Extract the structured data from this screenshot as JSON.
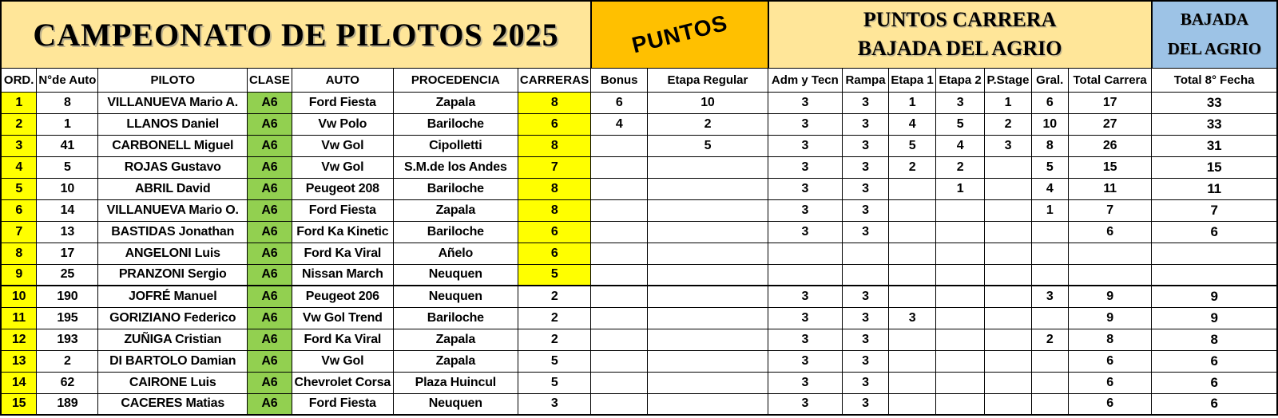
{
  "title": "CAMPEONATO DE PILOTOS 2025",
  "header_boxes": {
    "puntos": "PUNTOS",
    "puntos_carrera_line1": "PUNTOS CARRERA",
    "puntos_carrera_line2": "BAJADA DEL AGRIO",
    "bajada_line1": "BAJADA",
    "bajada_line2": "DEL AGRIO"
  },
  "colors": {
    "cream_band": "#FFE699",
    "puntos_orange": "#FFC000",
    "bajada_blue": "#9DC3E6",
    "highlight_yellow": "#FFFF00",
    "clase_green": "#92D050",
    "carreras_red": "#FF0000",
    "carreras_text_dark_red": "#7F1010"
  },
  "table": {
    "columns": [
      "ORD.",
      "N°de Auto",
      "PILOTO",
      "CLASE",
      "AUTO",
      "PROCEDENCIA",
      "CARRERAS",
      "Bonus",
      "Etapa Regular",
      "Adm y Tecn",
      "Rampa",
      "Etapa 1",
      "Etapa 2",
      "P.Stage",
      "Gral.",
      "Total Carrera",
      "Total 8° Fecha"
    ],
    "rows": [
      {
        "ord": "1",
        "auto_num": "8",
        "piloto": "VILLANUEVA Mario A.",
        "clase": "A6",
        "auto": "Ford Fiesta",
        "procedencia": "Zapala",
        "carreras": "8",
        "carreras_highlight": true,
        "bonus": "6",
        "etapa_regular": "10",
        "adm_y_tecn": "3",
        "rampa": "3",
        "etapa1": "1",
        "etapa2": "3",
        "p_stage": "1",
        "gral": "6",
        "total_carrera": "17",
        "total_fecha": "33"
      },
      {
        "ord": "2",
        "auto_num": "1",
        "piloto": "LLANOS Daniel",
        "clase": "A6",
        "auto": "Vw Polo",
        "procedencia": "Bariloche",
        "carreras": "6",
        "carreras_highlight": true,
        "bonus": "4",
        "etapa_regular": "2",
        "adm_y_tecn": "3",
        "rampa": "3",
        "etapa1": "4",
        "etapa2": "5",
        "p_stage": "2",
        "gral": "10",
        "total_carrera": "27",
        "total_fecha": "33"
      },
      {
        "ord": "3",
        "auto_num": "41",
        "piloto": "CARBONELL Miguel",
        "clase": "A6",
        "auto": "Vw Gol",
        "procedencia": "Cipolletti",
        "carreras": "8",
        "carreras_highlight": true,
        "bonus": "",
        "etapa_regular": "5",
        "adm_y_tecn": "3",
        "rampa": "3",
        "etapa1": "5",
        "etapa2": "4",
        "p_stage": "3",
        "gral": "8",
        "total_carrera": "26",
        "total_fecha": "31"
      },
      {
        "ord": "4",
        "auto_num": "5",
        "piloto": "ROJAS Gustavo",
        "clase": "A6",
        "auto": "Vw Gol",
        "procedencia": "S.M.de los Andes",
        "carreras": "7",
        "carreras_highlight": true,
        "bonus": "",
        "etapa_regular": "",
        "adm_y_tecn": "3",
        "rampa": "3",
        "etapa1": "2",
        "etapa2": "2",
        "p_stage": "",
        "gral": "5",
        "total_carrera": "15",
        "total_fecha": "15"
      },
      {
        "ord": "5",
        "auto_num": "10",
        "piloto": "ABRIL David",
        "clase": "A6",
        "auto": "Peugeot 208",
        "procedencia": "Bariloche",
        "carreras": "8",
        "carreras_highlight": true,
        "bonus": "",
        "etapa_regular": "",
        "adm_y_tecn": "3",
        "rampa": "3",
        "etapa1": "",
        "etapa2": "1",
        "p_stage": "",
        "gral": "4",
        "total_carrera": "11",
        "total_fecha": "11"
      },
      {
        "ord": "6",
        "auto_num": "14",
        "piloto": "VILLANUEVA Mario O.",
        "clase": "A6",
        "auto": "Ford Fiesta",
        "procedencia": "Zapala",
        "carreras": "8",
        "carreras_highlight": true,
        "bonus": "",
        "etapa_regular": "",
        "adm_y_tecn": "3",
        "rampa": "3",
        "etapa1": "",
        "etapa2": "",
        "p_stage": "",
        "gral": "1",
        "total_carrera": "7",
        "total_fecha": "7"
      },
      {
        "ord": "7",
        "auto_num": "13",
        "piloto": "BASTIDAS Jonathan",
        "clase": "A6",
        "auto": "Ford Ka Kinetic",
        "procedencia": "Bariloche",
        "carreras": "6",
        "carreras_highlight": true,
        "bonus": "",
        "etapa_regular": "",
        "adm_y_tecn": "3",
        "rampa": "3",
        "etapa1": "",
        "etapa2": "",
        "p_stage": "",
        "gral": "",
        "total_carrera": "6",
        "total_fecha": "6"
      },
      {
        "ord": "8",
        "auto_num": "17",
        "piloto": "ANGELONI Luis",
        "clase": "A6",
        "auto": "Ford Ka Viral",
        "procedencia": "Añelo",
        "carreras": "6",
        "carreras_highlight": true,
        "bonus": "",
        "etapa_regular": "",
        "adm_y_tecn": "",
        "rampa": "",
        "etapa1": "",
        "etapa2": "",
        "p_stage": "",
        "gral": "",
        "total_carrera": "",
        "total_fecha": ""
      },
      {
        "ord": "9",
        "auto_num": "25",
        "piloto": "PRANZONI Sergio",
        "clase": "A6",
        "auto": "Nissan March",
        "procedencia": "Neuquen",
        "carreras": "5",
        "carreras_highlight": true,
        "bonus": "",
        "etapa_regular": "",
        "adm_y_tecn": "",
        "rampa": "",
        "etapa1": "",
        "etapa2": "",
        "p_stage": "",
        "gral": "",
        "total_carrera": "",
        "total_fecha": ""
      },
      {
        "ord": "10",
        "auto_num": "190",
        "piloto": "JOFRÉ Manuel",
        "clase": "A6",
        "auto": "Peugeot 206",
        "procedencia": "Neuquen",
        "carreras": "2",
        "carreras_highlight": false,
        "bonus": "",
        "etapa_regular": "",
        "adm_y_tecn": "3",
        "rampa": "3",
        "etapa1": "",
        "etapa2": "",
        "p_stage": "",
        "gral": "3",
        "total_carrera": "9",
        "total_fecha": "9"
      },
      {
        "ord": "11",
        "auto_num": "195",
        "piloto": "GORIZIANO Federico",
        "clase": "A6",
        "auto": "Vw Gol Trend",
        "procedencia": "Bariloche",
        "carreras": "2",
        "carreras_highlight": false,
        "bonus": "",
        "etapa_regular": "",
        "adm_y_tecn": "3",
        "rampa": "3",
        "etapa1": "3",
        "etapa2": "",
        "p_stage": "",
        "gral": "",
        "total_carrera": "9",
        "total_fecha": "9"
      },
      {
        "ord": "12",
        "auto_num": "193",
        "piloto": "ZUÑIGA Cristian",
        "clase": "A6",
        "auto": "Ford Ka Viral",
        "procedencia": "Zapala",
        "carreras": "2",
        "carreras_highlight": false,
        "bonus": "",
        "etapa_regular": "",
        "adm_y_tecn": "3",
        "rampa": "3",
        "etapa1": "",
        "etapa2": "",
        "p_stage": "",
        "gral": "2",
        "total_carrera": "8",
        "total_fecha": "8"
      },
      {
        "ord": "13",
        "auto_num": "2",
        "piloto": "DI BARTOLO Damian",
        "clase": "A6",
        "auto": "Vw Gol",
        "procedencia": "Zapala",
        "carreras": "5",
        "carreras_highlight": false,
        "bonus": "",
        "etapa_regular": "",
        "adm_y_tecn": "3",
        "rampa": "3",
        "etapa1": "",
        "etapa2": "",
        "p_stage": "",
        "gral": "",
        "total_carrera": "6",
        "total_fecha": "6"
      },
      {
        "ord": "14",
        "auto_num": "62",
        "piloto": "CAIRONE Luis",
        "clase": "A6",
        "auto": "Chevrolet Corsa",
        "procedencia": "Plaza Huincul",
        "carreras": "5",
        "carreras_highlight": false,
        "bonus": "",
        "etapa_regular": "",
        "adm_y_tecn": "3",
        "rampa": "3",
        "etapa1": "",
        "etapa2": "",
        "p_stage": "",
        "gral": "",
        "total_carrera": "6",
        "total_fecha": "6"
      },
      {
        "ord": "15",
        "auto_num": "189",
        "piloto": "CACERES Matias",
        "clase": "A6",
        "auto": "Ford Fiesta",
        "procedencia": "Neuquen",
        "carreras": "3",
        "carreras_highlight": false,
        "bonus": "",
        "etapa_regular": "",
        "adm_y_tecn": "3",
        "rampa": "3",
        "etapa1": "",
        "etapa2": "",
        "p_stage": "",
        "gral": "",
        "total_carrera": "6",
        "total_fecha": "6"
      }
    ]
  }
}
